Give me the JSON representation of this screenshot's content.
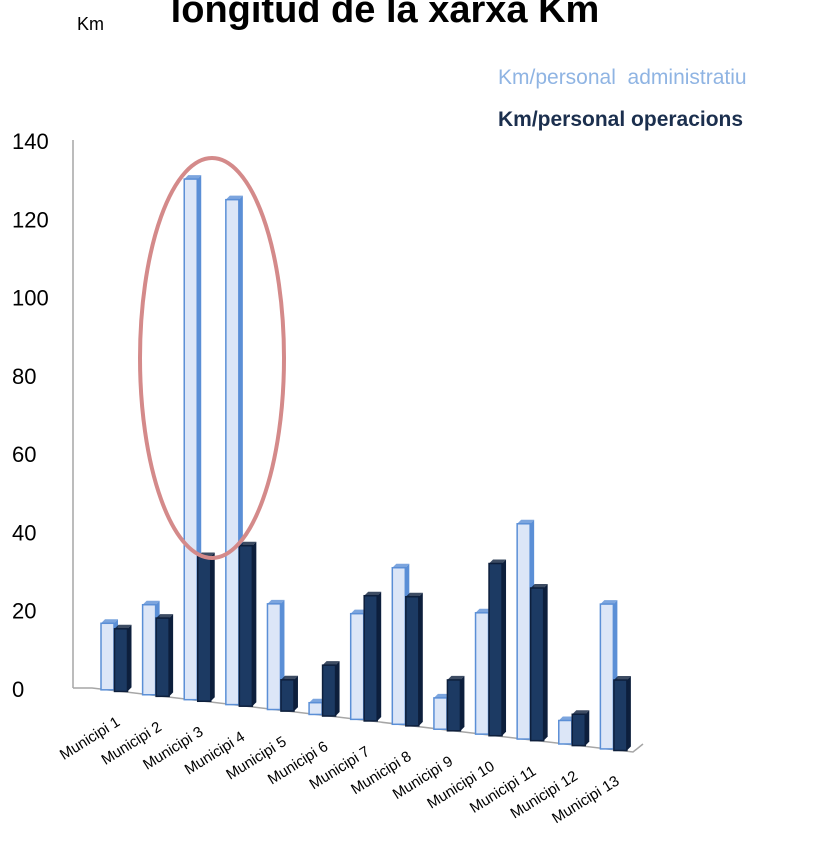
{
  "chart_data": {
    "type": "bar",
    "title": "longitud de la xarxa Km",
    "ylabel": "Km",
    "xlabel": "",
    "ylim": [
      0,
      140
    ],
    "yticks": [
      0,
      20,
      40,
      60,
      80,
      100,
      120,
      140
    ],
    "categories": [
      "Municipi 1",
      "Municipi 2",
      "Municipi 3",
      "Municipi 4",
      "Municipi 5",
      "Municipi 6",
      "Municipi 7",
      "Municipi 8",
      "Municipi 9",
      "Municipi 10",
      "Municipi 11",
      "Municipi 12",
      "Municipi 13"
    ],
    "series": [
      {
        "name": "Km/personal  administratiu",
        "color": "#dce6f7",
        "edge": "#5b8fd6",
        "values": [
          17,
          23,
          133,
          129,
          27,
          3,
          27,
          40,
          8,
          31,
          55,
          6,
          37
        ]
      },
      {
        "name": "Km/personal operacions",
        "color": "#1c3a63",
        "edge": "#0d1f3c",
        "values": [
          16,
          20,
          37,
          41,
          8,
          13,
          32,
          33,
          13,
          44,
          39,
          8,
          18
        ]
      }
    ],
    "legend_position": "top-right",
    "annotation": "highlight-ellipse around Municipi 3 and Municipi 4",
    "annotation_color": "#d48a8a",
    "grid": false
  }
}
